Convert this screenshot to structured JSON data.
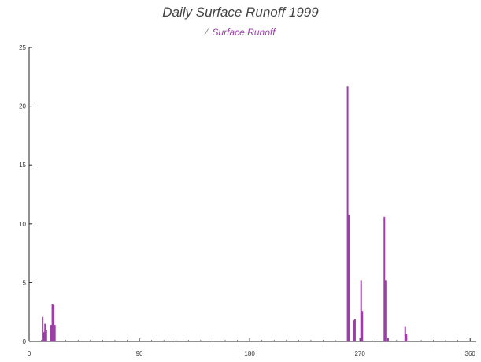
{
  "chart_data": {
    "type": "bar",
    "title": "Daily Surface Runoff 1999",
    "xlabel": "",
    "ylabel": "",
    "xlim": [
      0,
      365
    ],
    "ylim": [
      0,
      25
    ],
    "x_ticks": [
      0,
      90,
      180,
      270,
      360
    ],
    "y_ticks": [
      0,
      5,
      10,
      15,
      20,
      25
    ],
    "grid": false,
    "legend": "top-center",
    "series": [
      {
        "name": "Surface Runoff",
        "color": "#9b3fa6",
        "points": [
          {
            "x": 11,
            "y": 2.1
          },
          {
            "x": 12,
            "y": 0.8
          },
          {
            "x": 13,
            "y": 1.5
          },
          {
            "x": 14,
            "y": 1.0
          },
          {
            "x": 18,
            "y": 1.4
          },
          {
            "x": 19,
            "y": 3.2
          },
          {
            "x": 20,
            "y": 3.1
          },
          {
            "x": 21,
            "y": 1.4
          },
          {
            "x": 260,
            "y": 21.7
          },
          {
            "x": 261,
            "y": 10.8
          },
          {
            "x": 265,
            "y": 1.8
          },
          {
            "x": 266,
            "y": 1.9
          },
          {
            "x": 271,
            "y": 5.2
          },
          {
            "x": 272,
            "y": 2.6
          },
          {
            "x": 290,
            "y": 10.6
          },
          {
            "x": 291,
            "y": 5.2
          },
          {
            "x": 293,
            "y": 0.3
          },
          {
            "x": 307,
            "y": 1.3
          },
          {
            "x": 308,
            "y": 0.6
          }
        ]
      }
    ]
  }
}
